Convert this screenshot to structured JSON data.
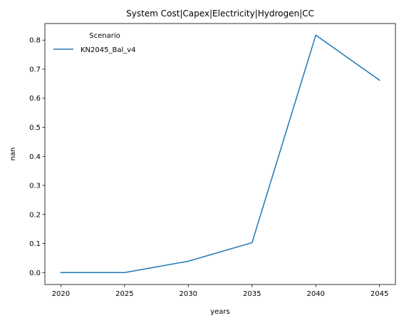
{
  "chart_data": {
    "type": "line",
    "title": "System Cost|Capex|Electricity|Hydrogen|CC",
    "xlabel": "years",
    "ylabel": "nan",
    "x": [
      2020,
      2025,
      2030,
      2035,
      2040,
      2045
    ],
    "xlim": [
      2018.75,
      2046.25
    ],
    "ylim": [
      -0.041,
      0.857
    ],
    "xticks": [
      2020,
      2025,
      2030,
      2035,
      2040,
      2045
    ],
    "yticks": [
      0.0,
      0.1,
      0.2,
      0.3,
      0.4,
      0.5,
      0.6,
      0.7,
      0.8
    ],
    "grid": false,
    "legend": {
      "title": "Scenario",
      "placement": "top-left",
      "frame": false
    },
    "series": [
      {
        "name": "KN2045_Bal_v4",
        "color": "#1f77b4",
        "values": [
          0.0,
          0.0,
          0.039,
          0.103,
          0.817,
          0.662
        ]
      }
    ]
  }
}
